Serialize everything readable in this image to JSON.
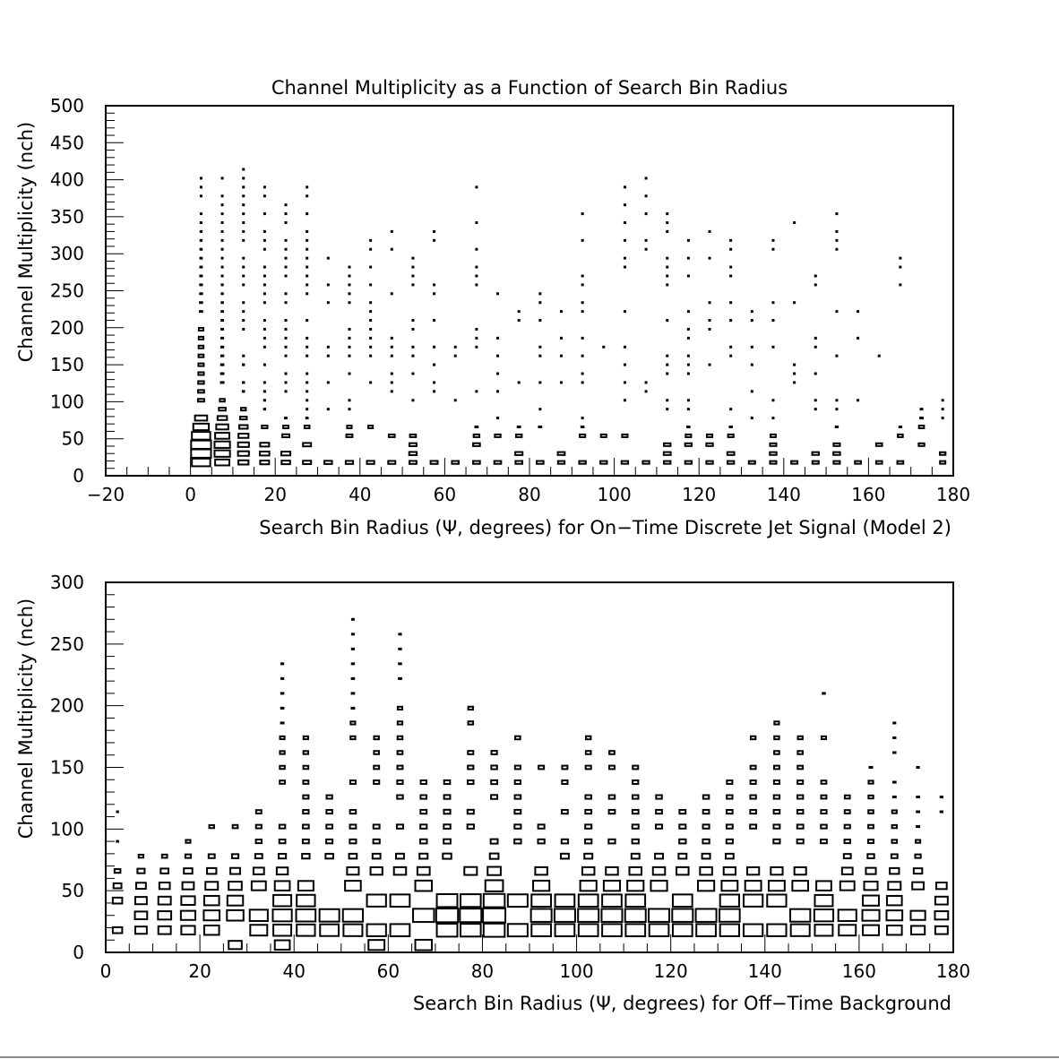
{
  "chart_data": [
    {
      "type": "heatmap",
      "title": "Channel Multiplicity as a Function of Search Bin Radius",
      "xlabel": "Search Bin Radius (Ψ, degrees) for On−Time Discrete Jet Signal (Model 2)",
      "ylabel": "Channel Multiplicity (nch)",
      "xlim": [
        -20,
        180
      ],
      "ylim": [
        0,
        500
      ],
      "xticks": [
        "−20",
        "0",
        "20",
        "40",
        "60",
        "80",
        "100",
        "120",
        "140",
        "160",
        "180"
      ],
      "yticks": [
        "0",
        "50",
        "100",
        "150",
        "200",
        "250",
        "300",
        "350",
        "400",
        "450",
        "500"
      ],
      "grid": false,
      "bin_width_x": 5,
      "bin_height_y": 12,
      "columns": [
        {
          "x": 2.5,
          "ymin": 18,
          "ymax": 408,
          "peak_y": 36,
          "peak_level": 1.0,
          "density": 0.95
        },
        {
          "x": 7.5,
          "ymin": 18,
          "ymax": 408,
          "peak_y": 36,
          "peak_level": 0.6,
          "density": 0.9
        },
        {
          "x": 12.5,
          "ymin": 18,
          "ymax": 418,
          "peak_y": 36,
          "peak_level": 0.3,
          "density": 0.85
        },
        {
          "x": 17.5,
          "ymin": 18,
          "ymax": 395,
          "peak_y": 30,
          "peak_level": 0.22,
          "density": 0.75
        },
        {
          "x": 22.5,
          "ymin": 18,
          "ymax": 370,
          "peak_y": 30,
          "peak_level": 0.2,
          "density": 0.7
        },
        {
          "x": 27.5,
          "ymin": 18,
          "ymax": 395,
          "peak_y": 30,
          "peak_level": 0.18,
          "density": 0.6
        },
        {
          "x": 32.5,
          "ymin": 18,
          "ymax": 305,
          "peak_y": 30,
          "peak_level": 0.16,
          "density": 0.5
        },
        {
          "x": 37.5,
          "ymin": 18,
          "ymax": 290,
          "peak_y": 30,
          "peak_level": 0.15,
          "density": 0.45
        },
        {
          "x": 42.5,
          "ymin": 18,
          "ymax": 320,
          "peak_y": 30,
          "peak_level": 0.15,
          "density": 0.45
        },
        {
          "x": 47.5,
          "ymin": 18,
          "ymax": 330,
          "peak_y": 30,
          "peak_level": 0.14,
          "density": 0.4
        },
        {
          "x": 52.5,
          "ymin": 18,
          "ymax": 305,
          "peak_y": 30,
          "peak_level": 0.14,
          "density": 0.4
        },
        {
          "x": 57.5,
          "ymin": 18,
          "ymax": 330,
          "peak_y": 30,
          "peak_level": 0.14,
          "density": 0.4
        },
        {
          "x": 62.5,
          "ymin": 18,
          "ymax": 180,
          "peak_y": 30,
          "peak_level": 0.13,
          "density": 0.45
        },
        {
          "x": 67.5,
          "ymin": 18,
          "ymax": 395,
          "peak_y": 30,
          "peak_level": 0.13,
          "density": 0.4
        },
        {
          "x": 72.5,
          "ymin": 18,
          "ymax": 255,
          "peak_y": 30,
          "peak_level": 0.13,
          "density": 0.4
        },
        {
          "x": 77.5,
          "ymin": 18,
          "ymax": 230,
          "peak_y": 30,
          "peak_level": 0.13,
          "density": 0.4
        },
        {
          "x": 82.5,
          "ymin": 18,
          "ymax": 255,
          "peak_y": 30,
          "peak_level": 0.13,
          "density": 0.4
        },
        {
          "x": 87.5,
          "ymin": 18,
          "ymax": 230,
          "peak_y": 30,
          "peak_level": 0.12,
          "density": 0.35
        },
        {
          "x": 92.5,
          "ymin": 18,
          "ymax": 355,
          "peak_y": 30,
          "peak_level": 0.12,
          "density": 0.35
        },
        {
          "x": 97.5,
          "ymin": 18,
          "ymax": 180,
          "peak_y": 30,
          "peak_level": 0.12,
          "density": 0.4
        },
        {
          "x": 102.5,
          "ymin": 18,
          "ymax": 395,
          "peak_y": 30,
          "peak_level": 0.12,
          "density": 0.35
        },
        {
          "x": 107.5,
          "ymin": 18,
          "ymax": 405,
          "peak_y": 30,
          "peak_level": 0.12,
          "density": 0.4
        },
        {
          "x": 112.5,
          "ymin": 18,
          "ymax": 355,
          "peak_y": 30,
          "peak_level": 0.12,
          "density": 0.4
        },
        {
          "x": 117.5,
          "ymin": 18,
          "ymax": 320,
          "peak_y": 30,
          "peak_level": 0.12,
          "density": 0.45
        },
        {
          "x": 122.5,
          "ymin": 18,
          "ymax": 330,
          "peak_y": 30,
          "peak_level": 0.12,
          "density": 0.45
        },
        {
          "x": 127.5,
          "ymin": 18,
          "ymax": 320,
          "peak_y": 30,
          "peak_level": 0.12,
          "density": 0.45
        },
        {
          "x": 132.5,
          "ymin": 18,
          "ymax": 230,
          "peak_y": 30,
          "peak_level": 0.11,
          "density": 0.4
        },
        {
          "x": 137.5,
          "ymin": 18,
          "ymax": 320,
          "peak_y": 30,
          "peak_level": 0.11,
          "density": 0.35
        },
        {
          "x": 142.5,
          "ymin": 18,
          "ymax": 345,
          "peak_y": 30,
          "peak_level": 0.11,
          "density": 0.3
        },
        {
          "x": 147.5,
          "ymin": 18,
          "ymax": 270,
          "peak_y": 30,
          "peak_level": 0.11,
          "density": 0.35
        },
        {
          "x": 152.5,
          "ymin": 18,
          "ymax": 355,
          "peak_y": 30,
          "peak_level": 0.11,
          "density": 0.35
        },
        {
          "x": 157.5,
          "ymin": 18,
          "ymax": 230,
          "peak_y": 30,
          "peak_level": 0.1,
          "density": 0.3
        },
        {
          "x": 162.5,
          "ymin": 18,
          "ymax": 170,
          "peak_y": 30,
          "peak_level": 0.1,
          "density": 0.3
        },
        {
          "x": 167.5,
          "ymin": 18,
          "ymax": 305,
          "peak_y": 30,
          "peak_level": 0.1,
          "density": 0.3
        },
        {
          "x": 172.5,
          "ymin": 42,
          "ymax": 95,
          "peak_y": 42,
          "peak_level": 0.08,
          "density": 0.5
        },
        {
          "x": 177.5,
          "ymin": 18,
          "ymax": 105,
          "peak_y": 30,
          "peak_level": 0.08,
          "density": 0.5
        }
      ]
    },
    {
      "type": "heatmap",
      "xlabel": "Search Bin Radius (Ψ, degrees) for Off−Time Background",
      "ylabel": "Channel Multiplicity (nch)",
      "xlim": [
        0,
        180
      ],
      "ylim": [
        0,
        300
      ],
      "xticks": [
        "0",
        "20",
        "40",
        "60",
        "80",
        "100",
        "120",
        "140",
        "160",
        "180"
      ],
      "yticks": [
        "0",
        "50",
        "100",
        "150",
        "200",
        "250",
        "300"
      ],
      "grid": false,
      "bin_width_x": 5,
      "bin_height_y": 12,
      "columns": [
        {
          "x": 2.5,
          "ymin": 18,
          "ymax": 118,
          "peak_y": 30,
          "peak_level": 0.2,
          "density": 0.75
        },
        {
          "x": 7.5,
          "ymin": 18,
          "ymax": 80,
          "peak_y": 30,
          "peak_level": 0.3,
          "density": 0.95
        },
        {
          "x": 12.5,
          "ymin": 18,
          "ymax": 80,
          "peak_y": 30,
          "peak_level": 0.35,
          "density": 0.95
        },
        {
          "x": 17.5,
          "ymin": 18,
          "ymax": 93,
          "peak_y": 30,
          "peak_level": 0.42,
          "density": 0.9
        },
        {
          "x": 22.5,
          "ymin": 18,
          "ymax": 105,
          "peak_y": 30,
          "peak_level": 0.5,
          "density": 0.9
        },
        {
          "x": 27.5,
          "ymin": 6,
          "ymax": 105,
          "peak_y": 30,
          "peak_level": 0.55,
          "density": 0.9
        },
        {
          "x": 32.5,
          "ymin": 18,
          "ymax": 118,
          "peak_y": 30,
          "peak_level": 0.65,
          "density": 0.9
        },
        {
          "x": 37.5,
          "ymin": 6,
          "ymax": 243,
          "peak_y": 30,
          "peak_level": 0.72,
          "density": 0.8
        },
        {
          "x": 42.5,
          "ymin": 18,
          "ymax": 180,
          "peak_y": 30,
          "peak_level": 0.75,
          "density": 0.8
        },
        {
          "x": 47.5,
          "ymin": 18,
          "ymax": 130,
          "peak_y": 30,
          "peak_level": 0.78,
          "density": 0.9
        },
        {
          "x": 52.5,
          "ymin": 18,
          "ymax": 280,
          "peak_y": 30,
          "peak_level": 0.8,
          "density": 0.75
        },
        {
          "x": 57.5,
          "ymin": 6,
          "ymax": 180,
          "peak_y": 30,
          "peak_level": 0.82,
          "density": 0.8
        },
        {
          "x": 62.5,
          "ymin": 18,
          "ymax": 268,
          "peak_y": 30,
          "peak_level": 0.85,
          "density": 0.75
        },
        {
          "x": 67.5,
          "ymin": 6,
          "ymax": 143,
          "peak_y": 30,
          "peak_level": 0.88,
          "density": 0.85
        },
        {
          "x": 72.5,
          "ymin": 18,
          "ymax": 143,
          "peak_y": 30,
          "peak_level": 0.95,
          "density": 0.85
        },
        {
          "x": 77.5,
          "ymin": 18,
          "ymax": 205,
          "peak_y": 30,
          "peak_level": 0.92,
          "density": 0.75
        },
        {
          "x": 82.5,
          "ymin": 18,
          "ymax": 168,
          "peak_y": 30,
          "peak_level": 1.0,
          "density": 0.8
        },
        {
          "x": 87.5,
          "ymin": 18,
          "ymax": 180,
          "peak_y": 30,
          "peak_level": 0.88,
          "density": 0.8
        },
        {
          "x": 92.5,
          "ymin": 18,
          "ymax": 155,
          "peak_y": 30,
          "peak_level": 0.85,
          "density": 0.8
        },
        {
          "x": 97.5,
          "ymin": 18,
          "ymax": 155,
          "peak_y": 30,
          "peak_level": 0.85,
          "density": 0.8
        },
        {
          "x": 102.5,
          "ymin": 18,
          "ymax": 180,
          "peak_y": 30,
          "peak_level": 0.85,
          "density": 0.8
        },
        {
          "x": 107.5,
          "ymin": 18,
          "ymax": 168,
          "peak_y": 30,
          "peak_level": 0.85,
          "density": 0.8
        },
        {
          "x": 112.5,
          "ymin": 18,
          "ymax": 155,
          "peak_y": 30,
          "peak_level": 0.85,
          "density": 0.8
        },
        {
          "x": 117.5,
          "ymin": 18,
          "ymax": 130,
          "peak_y": 30,
          "peak_level": 0.85,
          "density": 0.85
        },
        {
          "x": 122.5,
          "ymin": 18,
          "ymax": 118,
          "peak_y": 30,
          "peak_level": 0.85,
          "density": 0.9
        },
        {
          "x": 127.5,
          "ymin": 18,
          "ymax": 130,
          "peak_y": 30,
          "peak_level": 0.85,
          "density": 0.85
        },
        {
          "x": 132.5,
          "ymin": 18,
          "ymax": 143,
          "peak_y": 30,
          "peak_level": 0.82,
          "density": 0.85
        },
        {
          "x": 137.5,
          "ymin": 18,
          "ymax": 180,
          "peak_y": 30,
          "peak_level": 0.82,
          "density": 0.8
        },
        {
          "x": 142.5,
          "ymin": 18,
          "ymax": 193,
          "peak_y": 30,
          "peak_level": 0.82,
          "density": 0.8
        },
        {
          "x": 147.5,
          "ymin": 18,
          "ymax": 180,
          "peak_y": 30,
          "peak_level": 0.8,
          "density": 0.8
        },
        {
          "x": 152.5,
          "ymin": 18,
          "ymax": 218,
          "peak_y": 30,
          "peak_level": 0.72,
          "density": 0.75
        },
        {
          "x": 157.5,
          "ymin": 18,
          "ymax": 130,
          "peak_y": 30,
          "peak_level": 0.65,
          "density": 0.85
        },
        {
          "x": 162.5,
          "ymin": 18,
          "ymax": 155,
          "peak_y": 30,
          "peak_level": 0.58,
          "density": 0.8
        },
        {
          "x": 167.5,
          "ymin": 18,
          "ymax": 193,
          "peak_y": 30,
          "peak_level": 0.5,
          "density": 0.75
        },
        {
          "x": 172.5,
          "ymin": 18,
          "ymax": 155,
          "peak_y": 30,
          "peak_level": 0.42,
          "density": 0.8
        },
        {
          "x": 177.5,
          "ymin": 18,
          "ymax": 130,
          "peak_y": 30,
          "peak_level": 0.35,
          "density": 0.8
        }
      ]
    }
  ]
}
